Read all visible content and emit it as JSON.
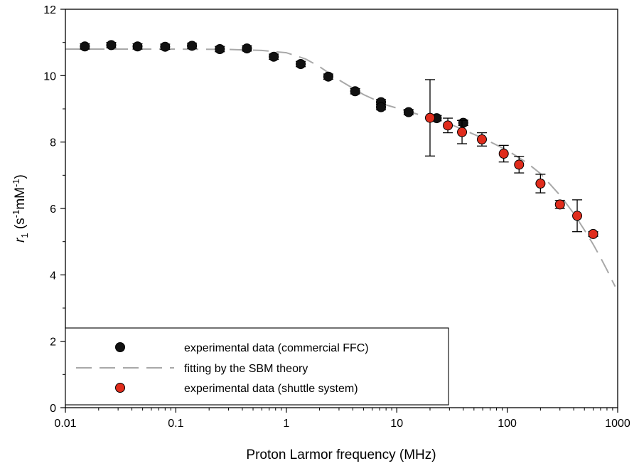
{
  "chart_data": {
    "type": "scatter",
    "xscale": "log",
    "xlim": [
      0.01,
      1000
    ],
    "ylim": [
      0,
      12
    ],
    "xlabel": "Proton Larmor frequency (MHz)",
    "ylabel": {
      "r": "r",
      "sub": "1",
      "open": " (s",
      "sup1": "-1",
      "mid": "mM",
      "sup2": "-1",
      "close": ")"
    },
    "xticks": [
      {
        "value": 0.01,
        "label": "0.01"
      },
      {
        "value": 0.1,
        "label": "0.1"
      },
      {
        "value": 1,
        "label": "1"
      },
      {
        "value": 10,
        "label": "10"
      },
      {
        "value": 100,
        "label": "100"
      },
      {
        "value": 1000,
        "label": "1000"
      }
    ],
    "yticks": [
      {
        "value": 0,
        "label": "0"
      },
      {
        "value": 2,
        "label": "2"
      },
      {
        "value": 4,
        "label": "4"
      },
      {
        "value": 6,
        "label": "6"
      },
      {
        "value": 8,
        "label": "8"
      },
      {
        "value": 10,
        "label": "10"
      },
      {
        "value": 12,
        "label": "12"
      }
    ],
    "legend_position": "bottom-left",
    "series": [
      {
        "name": "experimental data (commercial FFC)",
        "kind": "points",
        "color": "#111111",
        "points": [
          {
            "x": 0.015,
            "y": 10.88,
            "err": 0.08
          },
          {
            "x": 0.026,
            "y": 10.92,
            "err": 0.08
          },
          {
            "x": 0.045,
            "y": 10.88,
            "err": 0.08
          },
          {
            "x": 0.08,
            "y": 10.87,
            "err": 0.08
          },
          {
            "x": 0.14,
            "y": 10.9,
            "err": 0.08
          },
          {
            "x": 0.25,
            "y": 10.8,
            "err": 0.08
          },
          {
            "x": 0.44,
            "y": 10.82,
            "err": 0.08
          },
          {
            "x": 0.77,
            "y": 10.57,
            "err": 0.08
          },
          {
            "x": 1.35,
            "y": 10.35,
            "err": 0.08
          },
          {
            "x": 2.4,
            "y": 9.97,
            "err": 0.08
          },
          {
            "x": 4.2,
            "y": 9.53,
            "err": 0.08
          },
          {
            "x": 7.2,
            "y": 9.2,
            "err": 0.08
          },
          {
            "x": 7.2,
            "y": 9.05,
            "err": 0.08
          },
          {
            "x": 12.8,
            "y": 8.9,
            "err": 0.08
          },
          {
            "x": 23,
            "y": 8.72,
            "err": 0.08
          },
          {
            "x": 40,
            "y": 8.58,
            "err": 0.08
          }
        ]
      },
      {
        "name": "fitting by the SBM theory",
        "kind": "line",
        "color": "#a8a8a8",
        "dash": "22,11",
        "points": [
          {
            "x": 0.01,
            "y": 10.8
          },
          {
            "x": 0.1,
            "y": 10.8
          },
          {
            "x": 0.3,
            "y": 10.79
          },
          {
            "x": 0.6,
            "y": 10.76
          },
          {
            "x": 1.0,
            "y": 10.69
          },
          {
            "x": 1.5,
            "y": 10.5
          },
          {
            "x": 2.0,
            "y": 10.27
          },
          {
            "x": 3.0,
            "y": 9.87
          },
          {
            "x": 5.0,
            "y": 9.43
          },
          {
            "x": 8.0,
            "y": 9.12
          },
          {
            "x": 15,
            "y": 8.85
          },
          {
            "x": 30,
            "y": 8.55
          },
          {
            "x": 60,
            "y": 8.12
          },
          {
            "x": 100,
            "y": 7.75
          },
          {
            "x": 150,
            "y": 7.38
          },
          {
            "x": 200,
            "y": 7.05
          },
          {
            "x": 300,
            "y": 6.4
          },
          {
            "x": 400,
            "y": 5.85
          },
          {
            "x": 500,
            "y": 5.35
          },
          {
            "x": 600,
            "y": 4.92
          },
          {
            "x": 700,
            "y": 4.52
          },
          {
            "x": 800,
            "y": 4.15
          },
          {
            "x": 900,
            "y": 3.8
          },
          {
            "x": 950,
            "y": 3.65
          }
        ]
      },
      {
        "name": "experimental data (shuttle system)",
        "kind": "points",
        "color": "#e02c1c",
        "points": [
          {
            "x": 20,
            "y": 8.73,
            "err": 1.15
          },
          {
            "x": 29,
            "y": 8.5,
            "err": 0.22
          },
          {
            "x": 39,
            "y": 8.3,
            "err": 0.35
          },
          {
            "x": 59,
            "y": 8.08,
            "err": 0.2
          },
          {
            "x": 93,
            "y": 7.65,
            "err": 0.25
          },
          {
            "x": 128,
            "y": 7.32,
            "err": 0.25
          },
          {
            "x": 200,
            "y": 6.75,
            "err": 0.28
          },
          {
            "x": 300,
            "y": 6.12,
            "err": 0.12
          },
          {
            "x": 430,
            "y": 5.78,
            "err": 0.48
          },
          {
            "x": 600,
            "y": 5.23,
            "err": 0.07
          }
        ]
      }
    ]
  }
}
